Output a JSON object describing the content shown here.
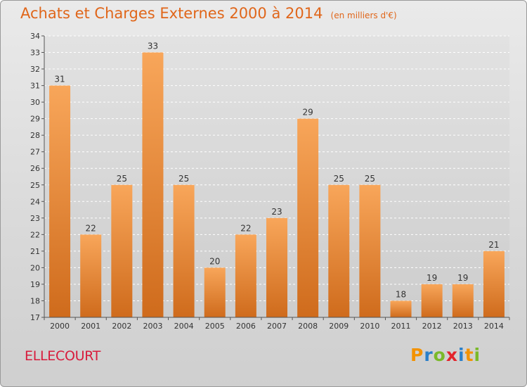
{
  "header": {
    "title": "Achats et Charges Externes 2000 à 2014",
    "unit": "(en milliers d'€)"
  },
  "footer": {
    "commune": "ELLECOURT",
    "logo_letters": [
      "P",
      "r",
      "o",
      "x",
      "i",
      "t",
      "i"
    ],
    "logo_colors": [
      "#f39200",
      "#2a7fc9",
      "#7ab929",
      "#e3242b",
      "#2a7fc9",
      "#f39200",
      "#7ab929"
    ]
  },
  "colors": {
    "bar_light": "#f8a65a",
    "bar_dark": "#cf6b1c",
    "title": "#e0661a",
    "commune": "#d81b3c"
  },
  "chart_data": {
    "type": "bar",
    "categories": [
      "2000",
      "2001",
      "2002",
      "2003",
      "2004",
      "2005",
      "2006",
      "2007",
      "2008",
      "2009",
      "2010",
      "2011",
      "2012",
      "2013",
      "2014"
    ],
    "values": [
      31,
      22,
      25,
      33,
      25,
      20,
      22,
      23,
      29,
      25,
      25,
      18,
      19,
      19,
      21
    ],
    "yticks": [
      "17",
      "18",
      "19",
      "20",
      "21",
      "22",
      "23",
      "24",
      "25",
      "26",
      "27",
      "28",
      "29",
      "30",
      "31",
      "32",
      "33",
      "34"
    ],
    "ylim": [
      17,
      34
    ],
    "grid": true,
    "title": "Achats et Charges Externes 2000 à 2014",
    "xlabel": "",
    "ylabel": ""
  }
}
